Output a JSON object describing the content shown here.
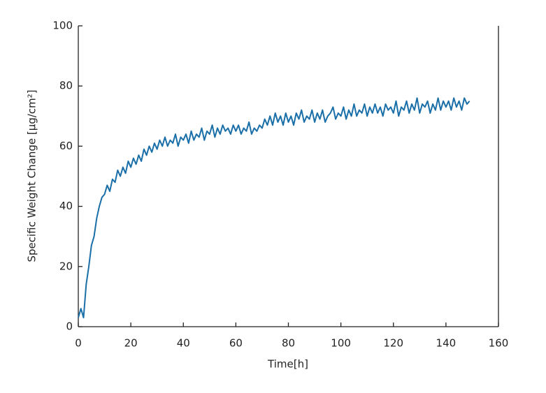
{
  "chart_data": {
    "type": "line",
    "xlabel": "Time[h]",
    "ylabel": "Specific Weight Change [μg/cm²]",
    "color": "#1a6fa8",
    "xlim": [
      0,
      160
    ],
    "xticks": [
      0,
      20,
      40,
      60,
      80,
      100,
      120,
      140,
      160
    ],
    "ylim": [
      0,
      100
    ],
    "yticks": [
      0,
      20,
      40,
      60,
      80,
      100
    ],
    "x": [
      0,
      1,
      2,
      3,
      4,
      5,
      6,
      7,
      8,
      9,
      10,
      11,
      12,
      13,
      14,
      15,
      16,
      17,
      18,
      19,
      20,
      21,
      22,
      23,
      24,
      25,
      26,
      27,
      28,
      29,
      30,
      31,
      32,
      33,
      34,
      35,
      36,
      37,
      38,
      39,
      40,
      41,
      42,
      43,
      44,
      45,
      46,
      47,
      48,
      49,
      50,
      51,
      52,
      53,
      54,
      55,
      56,
      57,
      58,
      59,
      60,
      61,
      62,
      63,
      64,
      65,
      66,
      67,
      68,
      69,
      70,
      71,
      72,
      73,
      74,
      75,
      76,
      77,
      78,
      79,
      80,
      81,
      82,
      83,
      84,
      85,
      86,
      87,
      88,
      89,
      90,
      91,
      92,
      93,
      94,
      95,
      96,
      97,
      98,
      99,
      100,
      101,
      102,
      103,
      104,
      105,
      106,
      107,
      108,
      109,
      110,
      111,
      112,
      113,
      114,
      115,
      116,
      117,
      118,
      119,
      120,
      121,
      122,
      123,
      124,
      125,
      126,
      127,
      128,
      129,
      130,
      131,
      132,
      133,
      134,
      135,
      136,
      137,
      138,
      139,
      140,
      141,
      142,
      143,
      144,
      145,
      146,
      147,
      148,
      149
    ],
    "values": [
      3,
      6,
      3,
      14,
      20,
      27,
      30,
      36,
      40,
      43,
      44,
      47,
      45,
      49,
      48,
      52,
      50,
      53,
      51,
      55,
      53,
      56,
      54,
      57,
      55,
      59,
      57,
      60,
      58,
      61,
      59,
      62,
      60,
      63,
      60,
      62,
      61,
      64,
      60,
      63,
      62,
      64,
      61,
      65,
      62,
      64,
      63,
      66,
      62,
      65,
      64,
      67,
      63,
      66,
      64,
      67,
      65,
      66,
      64,
      67,
      65,
      67,
      64,
      66,
      65,
      68,
      64,
      66,
      65,
      67,
      66,
      69,
      67,
      70,
      67,
      71,
      68,
      70,
      67,
      71,
      68,
      70,
      67,
      71,
      69,
      72,
      68,
      70,
      69,
      72,
      68,
      71,
      69,
      72,
      68,
      70,
      71,
      73,
      69,
      71,
      70,
      73,
      69,
      72,
      70,
      74,
      70,
      72,
      71,
      74,
      70,
      73,
      71,
      74,
      71,
      73,
      70,
      74,
      72,
      73,
      71,
      75,
      70,
      73,
      72,
      75,
      71,
      74,
      72,
      76,
      71,
      74,
      73,
      75,
      71,
      74,
      72,
      76,
      72,
      75,
      73,
      75,
      72,
      76,
      73,
      75,
      72,
      76,
      74,
      75
    ]
  }
}
